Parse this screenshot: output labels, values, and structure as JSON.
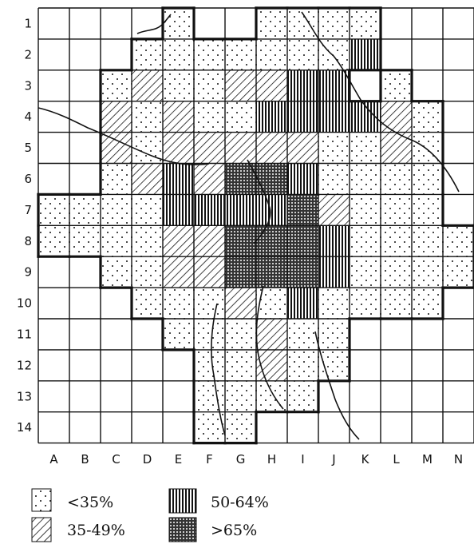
{
  "grid": {
    "rows": [
      "1",
      "2",
      "3",
      "4",
      "5",
      "6",
      "7",
      "8",
      "9",
      "10",
      "11",
      "12",
      "13",
      "14"
    ],
    "columns": [
      "A",
      "B",
      "C",
      "D",
      "E",
      "F",
      "G",
      "H",
      "I",
      "J",
      "K",
      "L",
      "M",
      "N"
    ]
  },
  "legend": [
    {
      "key": "low",
      "label": "<35%",
      "pattern": "dots"
    },
    {
      "key": "mid",
      "label": "35-49%",
      "pattern": "diagonal-hatch"
    },
    {
      "key": "high",
      "label": "50-64%",
      "pattern": "vertical-hatch"
    },
    {
      "key": "top",
      "label": ">65%",
      "pattern": "crosshatch"
    }
  ],
  "cells": [
    "....D..DDDD...",
    "...DDDDDDDV...",
    "..DSDDSSVV D..",
    "..SDSDDVVVVSD.",
    "..SDSSSSSDDSD.",
    "..DSVSXXVDDDD.",
    "DDDDVVVVXSDDD.",
    "DDDDSSXXXVDDDD",
    "..DDSSXXXVDDDD",
    "...DDDSDVDDDD.",
    "....DDDSDD....",
    ".....DDSDD....",
    ".....DDDD.....",
    ".....DD......."
  ],
  "colors": {
    "ink": "#111111",
    "paper": "#ffffff"
  }
}
